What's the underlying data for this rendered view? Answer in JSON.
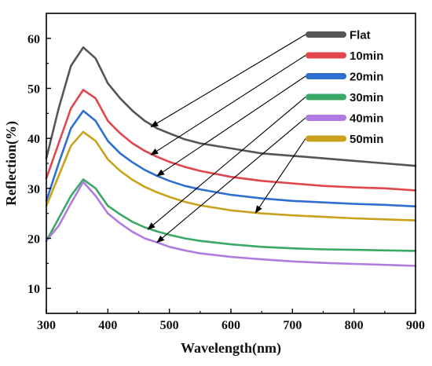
{
  "chart_data": {
    "type": "line",
    "title": "",
    "xlabel": "Wavelength(nm)",
    "ylabel": "Reflection(%)",
    "xlim": [
      300,
      900
    ],
    "ylim": [
      5,
      65
    ],
    "xticks": [
      300,
      400,
      500,
      600,
      700,
      800,
      900
    ],
    "yticks": [
      10,
      20,
      30,
      40,
      50,
      60
    ],
    "grid": false,
    "legend_position": "top-right",
    "series": [
      {
        "name": "Flat",
        "color": "#555555",
        "points": [
          [
            300,
            36
          ],
          [
            320,
            46
          ],
          [
            340,
            54.5
          ],
          [
            360,
            58.2
          ],
          [
            380,
            56
          ],
          [
            400,
            51
          ],
          [
            420,
            48
          ],
          [
            440,
            45.5
          ],
          [
            460,
            43.5
          ],
          [
            480,
            42
          ],
          [
            500,
            41
          ],
          [
            525,
            39.8
          ],
          [
            550,
            39
          ],
          [
            600,
            38
          ],
          [
            650,
            37
          ],
          [
            700,
            36.5
          ],
          [
            750,
            36
          ],
          [
            800,
            35.5
          ],
          [
            850,
            35
          ],
          [
            900,
            34.5
          ]
        ]
      },
      {
        "name": "10min",
        "color": "#e0474c",
        "points": [
          [
            300,
            32
          ],
          [
            320,
            39
          ],
          [
            340,
            46
          ],
          [
            360,
            49.7
          ],
          [
            380,
            48
          ],
          [
            400,
            43.5
          ],
          [
            420,
            41
          ],
          [
            440,
            39
          ],
          [
            460,
            37.5
          ],
          [
            480,
            36.3
          ],
          [
            500,
            35.3
          ],
          [
            525,
            34.3
          ],
          [
            550,
            33.5
          ],
          [
            600,
            32.3
          ],
          [
            650,
            31.5
          ],
          [
            700,
            31
          ],
          [
            750,
            30.5
          ],
          [
            800,
            30.2
          ],
          [
            850,
            30
          ],
          [
            900,
            29.6
          ]
        ]
      },
      {
        "name": "20min",
        "color": "#2e6fd0",
        "points": [
          [
            300,
            27.5
          ],
          [
            320,
            35
          ],
          [
            340,
            42
          ],
          [
            360,
            45.5
          ],
          [
            380,
            43.5
          ],
          [
            400,
            39.5
          ],
          [
            420,
            37
          ],
          [
            440,
            35.2
          ],
          [
            460,
            33.7
          ],
          [
            480,
            32.5
          ],
          [
            500,
            31.5
          ],
          [
            525,
            30.5
          ],
          [
            550,
            29.8
          ],
          [
            600,
            28.7
          ],
          [
            650,
            28
          ],
          [
            700,
            27.5
          ],
          [
            750,
            27.2
          ],
          [
            800,
            26.9
          ],
          [
            850,
            26.7
          ],
          [
            900,
            26.4
          ]
        ]
      },
      {
        "name": "30min",
        "color": "#3aa866",
        "points": [
          [
            300,
            19.5
          ],
          [
            320,
            24
          ],
          [
            340,
            28.5
          ],
          [
            360,
            31.8
          ],
          [
            380,
            30
          ],
          [
            400,
            26.5
          ],
          [
            420,
            24.8
          ],
          [
            440,
            23.3
          ],
          [
            460,
            22.2
          ],
          [
            480,
            21.4
          ],
          [
            500,
            20.7
          ],
          [
            525,
            20
          ],
          [
            550,
            19.5
          ],
          [
            600,
            18.8
          ],
          [
            650,
            18.3
          ],
          [
            700,
            18
          ],
          [
            750,
            17.8
          ],
          [
            800,
            17.7
          ],
          [
            850,
            17.6
          ],
          [
            900,
            17.5
          ]
        ]
      },
      {
        "name": "40min",
        "color": "#b07ce0",
        "points": [
          [
            300,
            19.5
          ],
          [
            320,
            22.5
          ],
          [
            340,
            27
          ],
          [
            360,
            31.3
          ],
          [
            380,
            28.5
          ],
          [
            400,
            25
          ],
          [
            420,
            23
          ],
          [
            440,
            21.3
          ],
          [
            460,
            20
          ],
          [
            480,
            19.2
          ],
          [
            500,
            18.3
          ],
          [
            525,
            17.6
          ],
          [
            550,
            17
          ],
          [
            600,
            16.3
          ],
          [
            650,
            15.8
          ],
          [
            700,
            15.4
          ],
          [
            750,
            15.1
          ],
          [
            800,
            14.9
          ],
          [
            850,
            14.7
          ],
          [
            900,
            14.5
          ]
        ]
      },
      {
        "name": "50min",
        "color": "#c9a21c",
        "points": [
          [
            300,
            26.5
          ],
          [
            320,
            32.5
          ],
          [
            340,
            38.5
          ],
          [
            360,
            41.3
          ],
          [
            380,
            39.5
          ],
          [
            400,
            35.8
          ],
          [
            420,
            33.5
          ],
          [
            440,
            31.7
          ],
          [
            460,
            30.3
          ],
          [
            480,
            29.2
          ],
          [
            500,
            28.3
          ],
          [
            525,
            27.3
          ],
          [
            550,
            26.6
          ],
          [
            600,
            25.6
          ],
          [
            650,
            25
          ],
          [
            700,
            24.6
          ],
          [
            750,
            24.3
          ],
          [
            800,
            24
          ],
          [
            850,
            23.8
          ],
          [
            900,
            23.6
          ]
        ]
      }
    ],
    "annotations": [
      {
        "type": "arrow",
        "series": "Flat",
        "point_to": [
          470,
          42.3
        ]
      },
      {
        "type": "arrow",
        "series": "10min",
        "point_to": [
          470,
          36.7
        ]
      },
      {
        "type": "arrow",
        "series": "20min",
        "point_to": [
          480,
          32.5
        ]
      },
      {
        "type": "arrow",
        "series": "30min",
        "point_to": [
          465,
          21.8
        ]
      },
      {
        "type": "arrow",
        "series": "40min",
        "point_to": [
          480,
          19.2
        ]
      },
      {
        "type": "arrow",
        "series": "50min",
        "point_to": [
          640,
          25.1
        ]
      }
    ]
  }
}
